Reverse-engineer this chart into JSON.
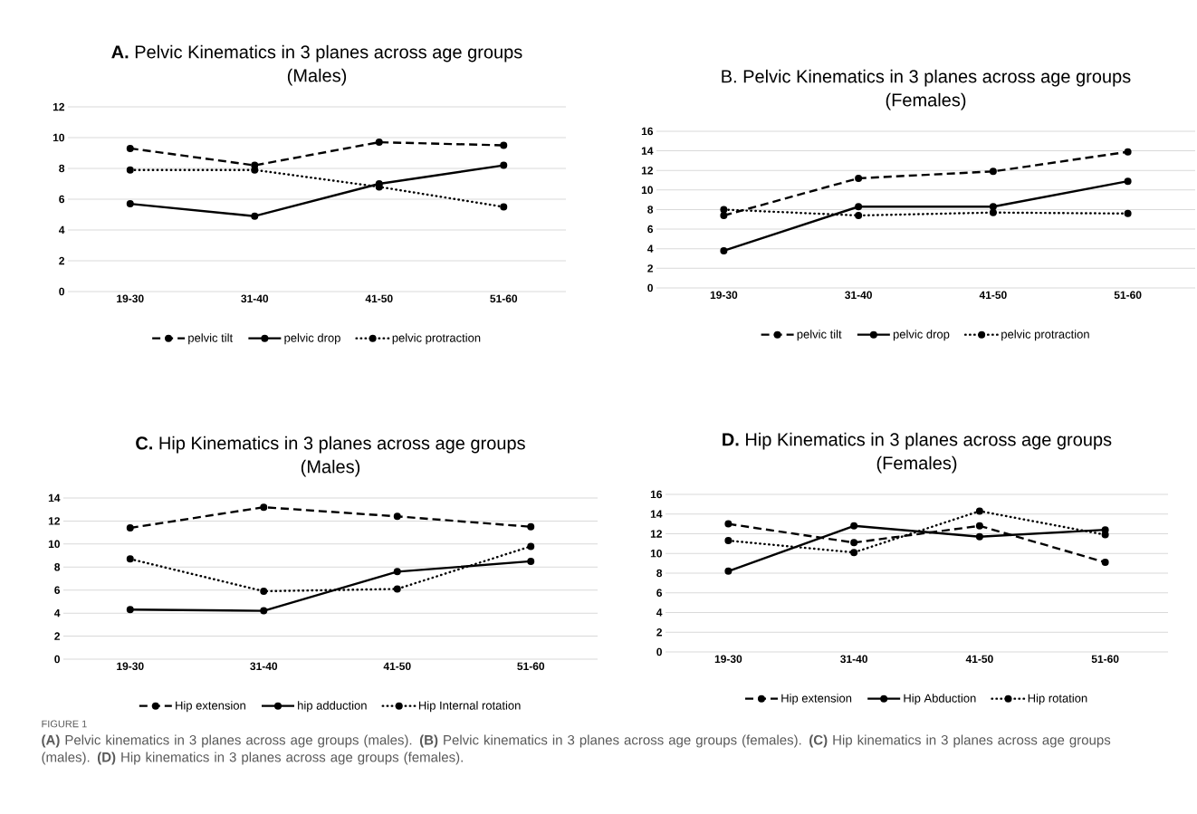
{
  "chart_data": [
    {
      "type": "line",
      "title": "**A.** Pelvic Kinematics in 3 planes across age groups",
      "subtitle": "(Males)",
      "categories": [
        "19-30",
        "31-40",
        "41-50",
        "51-60"
      ],
      "ylim": [
        0,
        12
      ],
      "yticks": [
        0,
        2,
        4,
        6,
        8,
        10,
        12
      ],
      "grid": "y",
      "legend": "bottom",
      "marker": "circle",
      "series": [
        {
          "name": "pelvic tilt",
          "color": "#000000",
          "line_style": "dashed",
          "values": [
            9.3,
            8.2,
            9.7,
            9.5
          ]
        },
        {
          "name": "pelvic drop",
          "color": "#000000",
          "line_style": "solid",
          "values": [
            5.7,
            4.9,
            7.0,
            8.2
          ]
        },
        {
          "name": "pelvic protraction",
          "color": "#000000",
          "line_style": "dotted",
          "values": [
            7.9,
            7.9,
            6.8,
            5.5
          ]
        }
      ]
    },
    {
      "type": "line",
      "title": "B.  Pelvic Kinematics in 3 planes across age groups",
      "subtitle": "(Females)",
      "categories": [
        "19-30",
        "31-40",
        "41-50",
        "51-60"
      ],
      "ylim": [
        0,
        16
      ],
      "yticks": [
        0,
        2,
        4,
        6,
        8,
        10,
        12,
        14,
        16
      ],
      "grid": "y",
      "legend": "bottom",
      "marker": "circle",
      "series": [
        {
          "name": "pelvic tilt",
          "color": "#000000",
          "line_style": "dashed",
          "values": [
            7.4,
            11.2,
            11.9,
            13.9
          ]
        },
        {
          "name": "pelvic drop",
          "color": "#000000",
          "line_style": "solid",
          "values": [
            3.8,
            8.3,
            8.3,
            10.9
          ]
        },
        {
          "name": "pelvic protraction",
          "color": "#000000",
          "line_style": "dotted",
          "values": [
            8.0,
            7.4,
            7.7,
            7.6
          ]
        }
      ]
    },
    {
      "type": "line",
      "title": "**C.** Hip Kinematics in 3 planes across age groups",
      "subtitle": "(Males)",
      "categories": [
        "19-30",
        "31-40",
        "41-50",
        "51-60"
      ],
      "ylim": [
        0,
        14
      ],
      "yticks": [
        0,
        2,
        4,
        6,
        8,
        10,
        12,
        14
      ],
      "grid": "y",
      "legend": "bottom",
      "marker": "circle",
      "series": [
        {
          "name": "Hip extension",
          "color": "#000000",
          "line_style": "dashed",
          "values": [
            11.4,
            13.2,
            12.4,
            11.5
          ]
        },
        {
          "name": "hip adduction",
          "color": "#000000",
          "line_style": "solid",
          "values": [
            4.3,
            4.2,
            7.6,
            8.5
          ]
        },
        {
          "name": "Hip Internal rotation",
          "color": "#000000",
          "line_style": "dotted",
          "values": [
            8.7,
            5.9,
            6.1,
            9.8
          ]
        }
      ]
    },
    {
      "type": "line",
      "title": "**D.** Hip Kinematics in 3 planes across age groups",
      "subtitle": "(Females)",
      "categories": [
        "19-30",
        "31-40",
        "41-50",
        "51-60"
      ],
      "ylim": [
        0,
        16
      ],
      "yticks": [
        0,
        2,
        4,
        6,
        8,
        10,
        12,
        14,
        16
      ],
      "grid": "y",
      "legend": "bottom",
      "marker": "circle",
      "series": [
        {
          "name": "Hip extension",
          "color": "#000000",
          "line_style": "dashed",
          "values": [
            13.0,
            11.1,
            12.8,
            9.1
          ]
        },
        {
          "name": "Hip Abduction",
          "color": "#000000",
          "line_style": "solid",
          "values": [
            8.2,
            12.8,
            11.7,
            12.4
          ]
        },
        {
          "name": "Hip rotation",
          "color": "#000000",
          "line_style": "dotted",
          "values": [
            11.3,
            10.1,
            14.3,
            11.9
          ]
        }
      ],
      "annotations": [
        "FIGURE 1",
        "**(A)** Pelvic kinematics in 3 planes across age groups (males). **(B)** Pelvic kinematics in 3 planes across age groups (females). **(C)** Hip kinematics in 3 planes across age groups (males). **(D)** Hip kinematics in 3 planes across age groups (females)."
      ]
    }
  ]
}
